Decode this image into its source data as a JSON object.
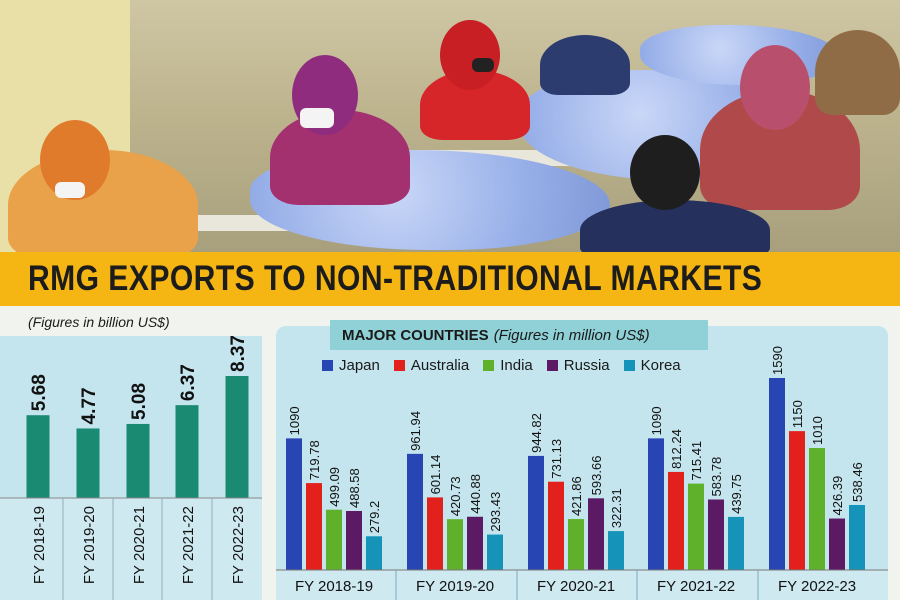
{
  "banner_title": "RMG EXPORTS TO NON-TRADITIONAL MARKETS",
  "colors": {
    "banner": "#f5b512",
    "panel": "#c4e5ee",
    "bar_total": "#1a8a72",
    "Japan": "#2845b4",
    "Australia": "#e3211c",
    "India": "#5fb02b",
    "Russia": "#5b1a63",
    "Korea": "#1593b8"
  },
  "chart_data": [
    {
      "type": "bar",
      "subtitle": "(Figures in billion US$)",
      "categories": [
        "FY 2018-19",
        "FY 2019-20",
        "FY 2020-21",
        "FY 2021-22",
        "FY 2022-23"
      ],
      "values": [
        5.68,
        4.77,
        5.08,
        6.37,
        8.37
      ],
      "value_labels": [
        "5.68",
        "4.77",
        "5.08",
        "6.37",
        "8.37"
      ]
    },
    {
      "type": "bar",
      "title": "MAJOR COUNTRIES",
      "subtitle": "(Figures in million US$)",
      "categories": [
        "FY 2018-19",
        "FY 2019-20",
        "FY 2020-21",
        "FY 2021-22",
        "FY 2022-23"
      ],
      "legend_position": "top",
      "series": [
        {
          "name": "Japan",
          "values": [
            1090,
            961.94,
            944.82,
            1090,
            1590
          ],
          "labels": [
            "1090",
            "961.94",
            "944.82",
            "1090",
            "1590"
          ]
        },
        {
          "name": "Australia",
          "values": [
            719.78,
            601.14,
            731.13,
            812.24,
            1150
          ],
          "labels": [
            "719.78",
            "601.14",
            "731.13",
            "812.24",
            "1150"
          ]
        },
        {
          "name": "India",
          "values": [
            499.09,
            420.73,
            421.86,
            715.41,
            1010
          ],
          "labels": [
            "499.09",
            "420.73",
            "421.86",
            "715.41",
            "1010"
          ]
        },
        {
          "name": "Russia",
          "values": [
            488.58,
            440.88,
            593.66,
            583.78,
            426.39
          ],
          "labels": [
            "488.58",
            "440.88",
            "593.66",
            "583.78",
            "426.39"
          ]
        },
        {
          "name": "Korea",
          "values": [
            279.2,
            293.43,
            322.31,
            439.75,
            538.46
          ],
          "labels": [
            "279.2",
            "293.43",
            "322.31",
            "439.75",
            "538.46"
          ]
        }
      ]
    }
  ]
}
